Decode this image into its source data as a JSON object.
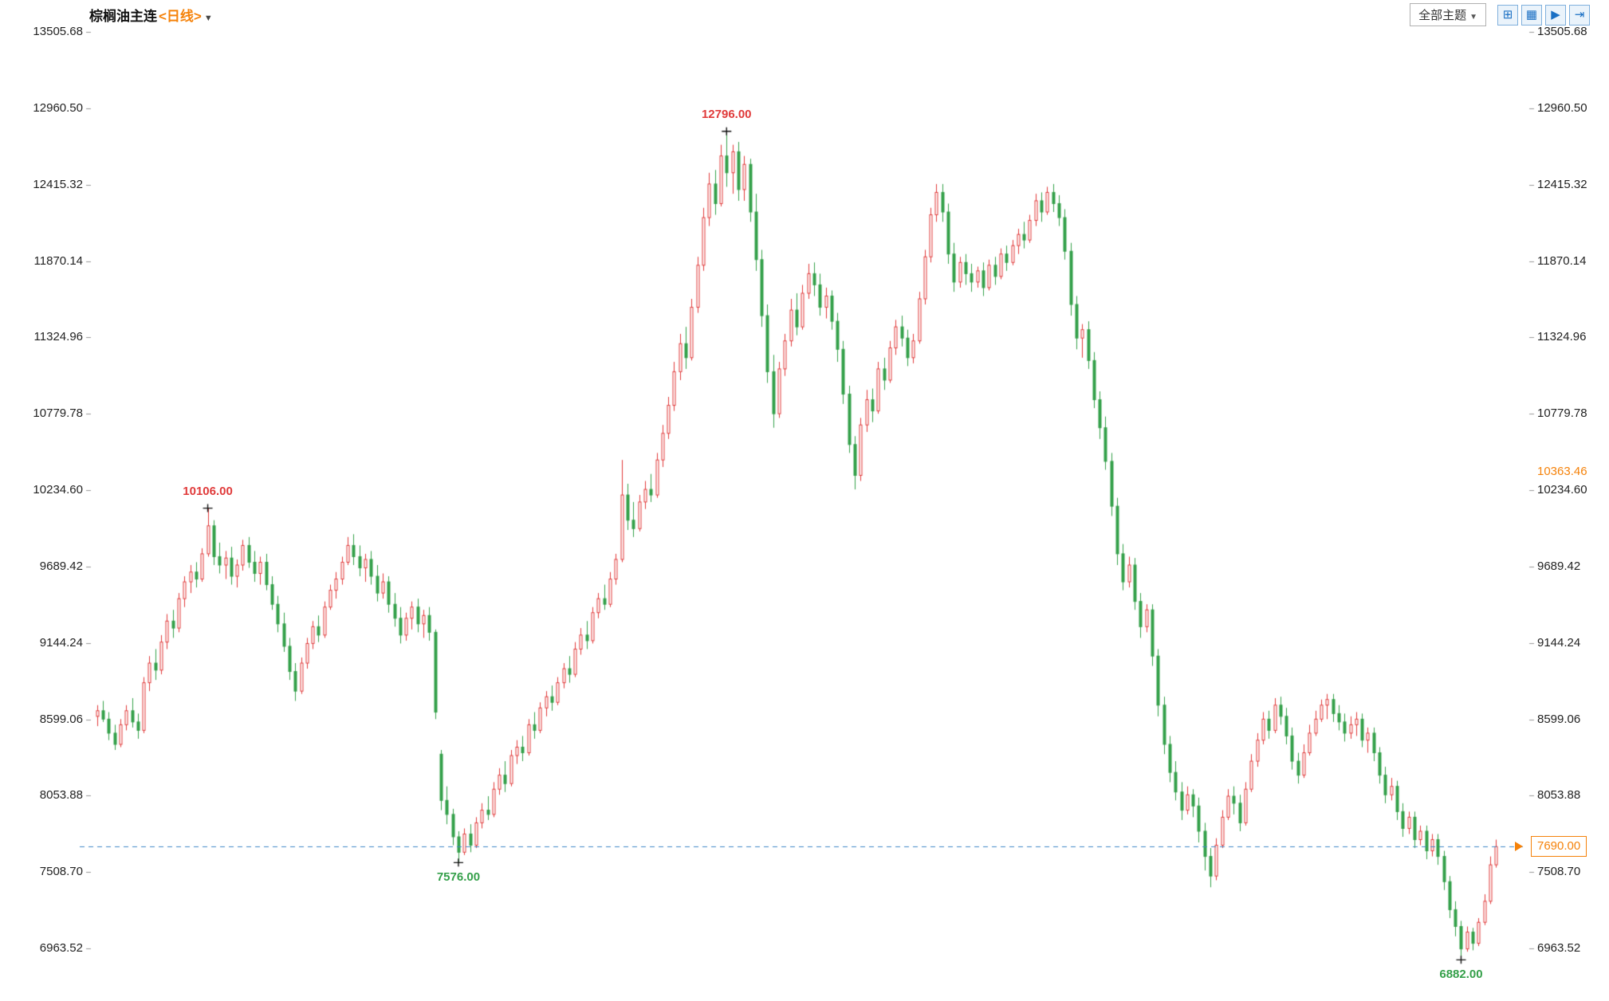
{
  "header": {
    "title": "棕榈油主连",
    "period": "<日线>",
    "caret": "▼",
    "theme_button": {
      "label": "全部主题",
      "caret": "▼"
    },
    "toolbar_icons": [
      {
        "name": "pan-tool-icon",
        "glyph": "⊞"
      },
      {
        "name": "split-panel-icon",
        "glyph": "▦"
      },
      {
        "name": "playback-icon",
        "glyph": "▶"
      },
      {
        "name": "collapse-right-icon",
        "glyph": "⇥"
      }
    ]
  },
  "axis": {
    "price_ticks": [
      "13505.68",
      "12960.50",
      "12415.32",
      "11870.14",
      "11324.96",
      "10779.78",
      "10234.60",
      "9689.42",
      "9144.24",
      "8599.06",
      "8053.88",
      "7508.70",
      "6963.52"
    ],
    "price_tick_values": [
      13505.68,
      12960.5,
      12415.32,
      11870.14,
      11324.96,
      10779.78,
      10234.6,
      9689.42,
      9144.24,
      8599.06,
      8053.88,
      7508.7,
      6963.52
    ],
    "right_markers": [
      {
        "name": "indicator-value-label",
        "text": "10363.46",
        "value": 10363.46,
        "boxed": false
      },
      {
        "name": "last-price-label",
        "text": "7690.00",
        "value": 7690.0,
        "boxed": true
      }
    ]
  },
  "chart_data": {
    "type": "candlestick",
    "title": "棕榈油主连 日线",
    "xlabel": "",
    "ylabel": "",
    "ylim": [
      6963.52,
      13505.68
    ],
    "grid": false,
    "up_color": "#e03a3a",
    "down_color": "#35a04a",
    "reference_line": {
      "price": 7690.0,
      "color": "#3d86c6",
      "style": "dashed"
    },
    "annotations": [
      {
        "text": "10106.00",
        "kind": "high",
        "color": "#e03a3a"
      },
      {
        "text": "12796.00",
        "kind": "high",
        "color": "#e03a3a"
      },
      {
        "text": "7576.00",
        "kind": "low",
        "color": "#35a04a"
      },
      {
        "text": "6882.00",
        "kind": "low",
        "color": "#35a04a"
      }
    ],
    "candles": [
      [
        8620,
        8700,
        8550,
        8660
      ],
      [
        8660,
        8730,
        8580,
        8600
      ],
      [
        8600,
        8650,
        8450,
        8500
      ],
      [
        8500,
        8560,
        8380,
        8420
      ],
      [
        8420,
        8600,
        8400,
        8560
      ],
      [
        8560,
        8700,
        8520,
        8660
      ],
      [
        8660,
        8750,
        8540,
        8580
      ],
      [
        8580,
        8640,
        8460,
        8520
      ],
      [
        8520,
        8900,
        8500,
        8860
      ],
      [
        8860,
        9050,
        8800,
        9000
      ],
      [
        9000,
        9100,
        8880,
        8950
      ],
      [
        8950,
        9200,
        8920,
        9150
      ],
      [
        9150,
        9350,
        9100,
        9300
      ],
      [
        9300,
        9380,
        9180,
        9250
      ],
      [
        9250,
        9500,
        9220,
        9460
      ],
      [
        9460,
        9620,
        9400,
        9580
      ],
      [
        9580,
        9700,
        9500,
        9650
      ],
      [
        9650,
        9720,
        9540,
        9600
      ],
      [
        9600,
        9820,
        9580,
        9780
      ],
      [
        9780,
        10106,
        9760,
        9980
      ],
      [
        9980,
        10020,
        9700,
        9760
      ],
      [
        9760,
        9860,
        9640,
        9700
      ],
      [
        9700,
        9800,
        9600,
        9750
      ],
      [
        9750,
        9830,
        9560,
        9620
      ],
      [
        9620,
        9740,
        9540,
        9700
      ],
      [
        9700,
        9880,
        9660,
        9840
      ],
      [
        9840,
        9900,
        9680,
        9720
      ],
      [
        9720,
        9800,
        9580,
        9640
      ],
      [
        9640,
        9760,
        9560,
        9720
      ],
      [
        9720,
        9780,
        9520,
        9560
      ],
      [
        9560,
        9620,
        9380,
        9420
      ],
      [
        9420,
        9480,
        9220,
        9280
      ],
      [
        9280,
        9360,
        9080,
        9120
      ],
      [
        9120,
        9180,
        8880,
        8940
      ],
      [
        8940,
        9000,
        8730,
        8800
      ],
      [
        8800,
        9040,
        8780,
        9000
      ],
      [
        9000,
        9180,
        8960,
        9140
      ],
      [
        9140,
        9300,
        9100,
        9260
      ],
      [
        9260,
        9340,
        9150,
        9200
      ],
      [
        9200,
        9440,
        9180,
        9400
      ],
      [
        9400,
        9560,
        9380,
        9520
      ],
      [
        9520,
        9650,
        9460,
        9600
      ],
      [
        9600,
        9760,
        9560,
        9720
      ],
      [
        9720,
        9900,
        9700,
        9840
      ],
      [
        9840,
        9920,
        9700,
        9760
      ],
      [
        9760,
        9840,
        9620,
        9680
      ],
      [
        9680,
        9780,
        9580,
        9740
      ],
      [
        9740,
        9800,
        9560,
        9620
      ],
      [
        9620,
        9700,
        9440,
        9500
      ],
      [
        9500,
        9640,
        9460,
        9580
      ],
      [
        9580,
        9620,
        9360,
        9420
      ],
      [
        9420,
        9500,
        9260,
        9320
      ],
      [
        9320,
        9400,
        9140,
        9200
      ],
      [
        9200,
        9360,
        9160,
        9320
      ],
      [
        9320,
        9440,
        9240,
        9400
      ],
      [
        9400,
        9460,
        9220,
        9280
      ],
      [
        9280,
        9380,
        9180,
        9340
      ],
      [
        9340,
        9400,
        9160,
        9220
      ],
      [
        9220,
        9240,
        8600,
        8650
      ],
      [
        8350,
        8380,
        7950,
        8020
      ],
      [
        8020,
        8120,
        7850,
        7920
      ],
      [
        7920,
        7960,
        7700,
        7760
      ],
      [
        7760,
        7800,
        7576,
        7650
      ],
      [
        7650,
        7820,
        7630,
        7780
      ],
      [
        7780,
        7850,
        7650,
        7700
      ],
      [
        7700,
        7900,
        7680,
        7860
      ],
      [
        7860,
        8000,
        7820,
        7950
      ],
      [
        7950,
        8050,
        7880,
        7920
      ],
      [
        7920,
        8150,
        7900,
        8100
      ],
      [
        8100,
        8250,
        8060,
        8200
      ],
      [
        8200,
        8300,
        8080,
        8140
      ],
      [
        8140,
        8380,
        8120,
        8340
      ],
      [
        8340,
        8450,
        8280,
        8400
      ],
      [
        8400,
        8480,
        8300,
        8360
      ],
      [
        8360,
        8600,
        8340,
        8560
      ],
      [
        8560,
        8650,
        8460,
        8520
      ],
      [
        8520,
        8720,
        8500,
        8680
      ],
      [
        8680,
        8800,
        8620,
        8760
      ],
      [
        8760,
        8840,
        8660,
        8720
      ],
      [
        8720,
        8900,
        8700,
        8860
      ],
      [
        8860,
        9000,
        8820,
        8960
      ],
      [
        8960,
        9050,
        8860,
        8920
      ],
      [
        8920,
        9150,
        8900,
        9100
      ],
      [
        9100,
        9250,
        9060,
        9200
      ],
      [
        9200,
        9300,
        9100,
        9160
      ],
      [
        9160,
        9400,
        9140,
        9360
      ],
      [
        9360,
        9500,
        9320,
        9460
      ],
      [
        9460,
        9560,
        9380,
        9420
      ],
      [
        9420,
        9650,
        9400,
        9600
      ],
      [
        9600,
        9780,
        9560,
        9740
      ],
      [
        9740,
        10450,
        9720,
        10200
      ],
      [
        10200,
        10280,
        9950,
        10020
      ],
      [
        10020,
        10150,
        9900,
        9960
      ],
      [
        9960,
        10200,
        9940,
        10150
      ],
      [
        10150,
        10300,
        10100,
        10240
      ],
      [
        10240,
        10350,
        10150,
        10200
      ],
      [
        10200,
        10500,
        10180,
        10450
      ],
      [
        10450,
        10700,
        10400,
        10640
      ],
      [
        10640,
        10900,
        10600,
        10840
      ],
      [
        10840,
        11150,
        10800,
        11080
      ],
      [
        11080,
        11350,
        11020,
        11280
      ],
      [
        11280,
        11400,
        11100,
        11180
      ],
      [
        11180,
        11600,
        11160,
        11540
      ],
      [
        11540,
        11900,
        11500,
        11840
      ],
      [
        11840,
        12250,
        11800,
        12180
      ],
      [
        12180,
        12500,
        12120,
        12420
      ],
      [
        12420,
        12520,
        12200,
        12280
      ],
      [
        12280,
        12700,
        12260,
        12620
      ],
      [
        12620,
        12796,
        12400,
        12500
      ],
      [
        12500,
        12700,
        12350,
        12650
      ],
      [
        12650,
        12720,
        12300,
        12380
      ],
      [
        12380,
        12620,
        12300,
        12560
      ],
      [
        12560,
        12600,
        12150,
        12220
      ],
      [
        12220,
        12350,
        11800,
        11880
      ],
      [
        11880,
        11950,
        11400,
        11480
      ],
      [
        11480,
        11560,
        11000,
        11080
      ],
      [
        11080,
        11200,
        10680,
        10780
      ],
      [
        10780,
        11150,
        10750,
        11100
      ],
      [
        11100,
        11350,
        11050,
        11300
      ],
      [
        11300,
        11600,
        11260,
        11520
      ],
      [
        11520,
        11640,
        11340,
        11400
      ],
      [
        11400,
        11700,
        11380,
        11640
      ],
      [
        11640,
        11850,
        11600,
        11780
      ],
      [
        11780,
        11860,
        11620,
        11700
      ],
      [
        11700,
        11780,
        11480,
        11540
      ],
      [
        11540,
        11680,
        11460,
        11620
      ],
      [
        11620,
        11660,
        11380,
        11440
      ],
      [
        11440,
        11500,
        11150,
        11240
      ],
      [
        11240,
        11300,
        10850,
        10920
      ],
      [
        10920,
        10980,
        10500,
        10560
      ],
      [
        10560,
        10620,
        10240,
        10340
      ],
      [
        10340,
        10750,
        10300,
        10700
      ],
      [
        10700,
        10950,
        10650,
        10880
      ],
      [
        10880,
        10960,
        10720,
        10800
      ],
      [
        10800,
        11150,
        10780,
        11100
      ],
      [
        11100,
        11180,
        10950,
        11020
      ],
      [
        11020,
        11300,
        11000,
        11250
      ],
      [
        11250,
        11450,
        11200,
        11400
      ],
      [
        11400,
        11480,
        11260,
        11320
      ],
      [
        11320,
        11380,
        11120,
        11180
      ],
      [
        11180,
        11350,
        11140,
        11300
      ],
      [
        11300,
        11650,
        11280,
        11600
      ],
      [
        11600,
        11950,
        11560,
        11900
      ],
      [
        11900,
        12250,
        11860,
        12200
      ],
      [
        12200,
        12420,
        12150,
        12360
      ],
      [
        12360,
        12420,
        12150,
        12220
      ],
      [
        12220,
        12280,
        11850,
        11920
      ],
      [
        11920,
        12000,
        11650,
        11720
      ],
      [
        11720,
        11900,
        11680,
        11860
      ],
      [
        11860,
        11920,
        11700,
        11780
      ],
      [
        11780,
        11850,
        11650,
        11720
      ],
      [
        11720,
        11830,
        11680,
        11800
      ],
      [
        11800,
        11860,
        11620,
        11680
      ],
      [
        11680,
        11880,
        11660,
        11840
      ],
      [
        11840,
        11900,
        11700,
        11760
      ],
      [
        11760,
        11960,
        11740,
        11920
      ],
      [
        11920,
        11980,
        11800,
        11860
      ],
      [
        11860,
        12020,
        11840,
        11980
      ],
      [
        11980,
        12100,
        11920,
        12060
      ],
      [
        12060,
        12150,
        11960,
        12020
      ],
      [
        12020,
        12200,
        12000,
        12160
      ],
      [
        12160,
        12350,
        12120,
        12300
      ],
      [
        12300,
        12360,
        12150,
        12220
      ],
      [
        12220,
        12400,
        12200,
        12360
      ],
      [
        12360,
        12420,
        12220,
        12280
      ],
      [
        12280,
        12340,
        12120,
        12180
      ],
      [
        12180,
        12240,
        11880,
        11940
      ],
      [
        11940,
        12000,
        11480,
        11560
      ],
      [
        11560,
        11620,
        11240,
        11320
      ],
      [
        11320,
        11420,
        11180,
        11380
      ],
      [
        11380,
        11440,
        11100,
        11160
      ],
      [
        11160,
        11220,
        10820,
        10880
      ],
      [
        10880,
        10940,
        10600,
        10680
      ],
      [
        10680,
        10760,
        10380,
        10440
      ],
      [
        10440,
        10500,
        10050,
        10120
      ],
      [
        10120,
        10180,
        9700,
        9780
      ],
      [
        9780,
        9850,
        9520,
        9580
      ],
      [
        9580,
        9760,
        9540,
        9700
      ],
      [
        9700,
        9750,
        9380,
        9440
      ],
      [
        9440,
        9500,
        9180,
        9260
      ],
      [
        9260,
        9420,
        9220,
        9380
      ],
      [
        9380,
        9420,
        8980,
        9050
      ],
      [
        9050,
        9100,
        8620,
        8700
      ],
      [
        8700,
        8760,
        8350,
        8420
      ],
      [
        8420,
        8480,
        8150,
        8220
      ],
      [
        8220,
        8300,
        8020,
        8080
      ],
      [
        8080,
        8150,
        7880,
        7950
      ],
      [
        7950,
        8120,
        7920,
        8060
      ],
      [
        8060,
        8100,
        7900,
        7980
      ],
      [
        7980,
        8040,
        7720,
        7800
      ],
      [
        7800,
        7860,
        7520,
        7620
      ],
      [
        7620,
        7680,
        7400,
        7480
      ],
      [
        7480,
        7750,
        7450,
        7700
      ],
      [
        7700,
        7950,
        7680,
        7900
      ],
      [
        7900,
        8100,
        7880,
        8050
      ],
      [
        8050,
        8120,
        7920,
        8000
      ],
      [
        8000,
        8060,
        7800,
        7860
      ],
      [
        7860,
        8150,
        7840,
        8100
      ],
      [
        8100,
        8350,
        8080,
        8300
      ],
      [
        8300,
        8500,
        8260,
        8450
      ],
      [
        8450,
        8650,
        8420,
        8600
      ],
      [
        8600,
        8660,
        8460,
        8520
      ],
      [
        8520,
        8750,
        8500,
        8700
      ],
      [
        8700,
        8760,
        8560,
        8620
      ],
      [
        8620,
        8680,
        8420,
        8480
      ],
      [
        8480,
        8540,
        8240,
        8300
      ],
      [
        8300,
        8360,
        8140,
        8200
      ],
      [
        8200,
        8420,
        8180,
        8360
      ],
      [
        8360,
        8560,
        8340,
        8500
      ],
      [
        8500,
        8660,
        8480,
        8600
      ],
      [
        8600,
        8740,
        8580,
        8700
      ],
      [
        8700,
        8780,
        8600,
        8740
      ],
      [
        8740,
        8780,
        8580,
        8640
      ],
      [
        8640,
        8700,
        8520,
        8580
      ],
      [
        8580,
        8640,
        8440,
        8500
      ],
      [
        8500,
        8620,
        8460,
        8560
      ],
      [
        8560,
        8650,
        8480,
        8600
      ],
      [
        8600,
        8640,
        8400,
        8450
      ],
      [
        8450,
        8540,
        8360,
        8500
      ],
      [
        8500,
        8540,
        8300,
        8360
      ],
      [
        8360,
        8400,
        8140,
        8200
      ],
      [
        8200,
        8260,
        8000,
        8060
      ],
      [
        8060,
        8180,
        8020,
        8120
      ],
      [
        8120,
        8160,
        7880,
        7940
      ],
      [
        7940,
        8000,
        7760,
        7820
      ],
      [
        7820,
        7940,
        7780,
        7900
      ],
      [
        7900,
        7940,
        7680,
        7740
      ],
      [
        7740,
        7840,
        7700,
        7800
      ],
      [
        7800,
        7840,
        7600,
        7660
      ],
      [
        7660,
        7780,
        7620,
        7740
      ],
      [
        7740,
        7780,
        7560,
        7620
      ],
      [
        7620,
        7660,
        7380,
        7440
      ],
      [
        7440,
        7480,
        7180,
        7240
      ],
      [
        7240,
        7300,
        7050,
        7120
      ],
      [
        7120,
        7160,
        6882,
        6960
      ],
      [
        6960,
        7120,
        6940,
        7080
      ],
      [
        7080,
        7110,
        6950,
        7000
      ],
      [
        7000,
        7180,
        6980,
        7150
      ],
      [
        7150,
        7350,
        7130,
        7300
      ],
      [
        7300,
        7620,
        7280,
        7560
      ],
      [
        7560,
        7740,
        7540,
        7690
      ]
    ]
  }
}
